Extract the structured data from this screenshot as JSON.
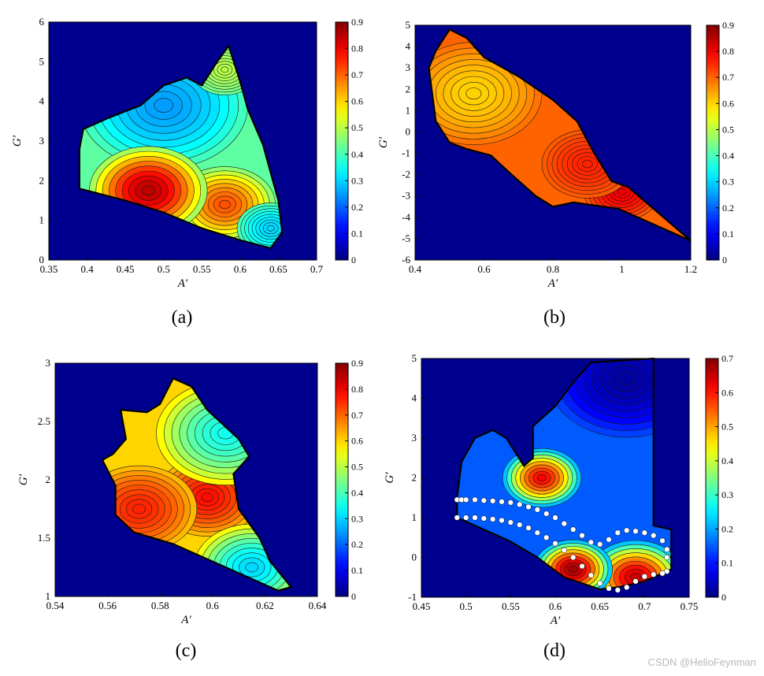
{
  "watermark": "CSDN @HelloFeynman",
  "colors": {
    "background": "#00008f",
    "axis": "#000000"
  },
  "chart_data": [
    {
      "type": "heatmap",
      "panel_label": "(a)",
      "xlabel": "A′",
      "ylabel": "G′",
      "xlim": [
        0.35,
        0.7
      ],
      "ylim": [
        0,
        6
      ],
      "x_ticks": [
        0.35,
        0.4,
        0.45,
        0.5,
        0.55,
        0.6,
        0.65,
        0.7
      ],
      "x_tick_labels": [
        "0.35",
        "0.4",
        "0.45",
        "0.5",
        "0.55",
        "0.6",
        "0.65",
        "0.7"
      ],
      "y_ticks": [
        0,
        1,
        2,
        3,
        4,
        5,
        6
      ],
      "y_tick_labels": [
        "0",
        "1",
        "2",
        "3",
        "4",
        "5",
        "6"
      ],
      "colorbar": {
        "min": 0,
        "max": 0.9,
        "ticks": [
          0,
          0.1,
          0.2,
          0.3,
          0.4,
          0.5,
          0.6,
          0.7,
          0.8,
          0.9
        ],
        "tick_labels": [
          "0",
          "0.1",
          "0.2",
          "0.3",
          "0.4",
          "0.5",
          "0.6",
          "0.7",
          "0.8",
          "0.9"
        ]
      },
      "region": [
        [
          0.39,
          1.8
        ],
        [
          0.39,
          2.8
        ],
        [
          0.395,
          3.3
        ],
        [
          0.43,
          3.6
        ],
        [
          0.47,
          3.9
        ],
        [
          0.5,
          4.4
        ],
        [
          0.53,
          4.6
        ],
        [
          0.55,
          4.4
        ],
        [
          0.57,
          5.0
        ],
        [
          0.585,
          5.4
        ],
        [
          0.6,
          4.5
        ],
        [
          0.61,
          3.8
        ],
        [
          0.63,
          2.9
        ],
        [
          0.64,
          2.2
        ],
        [
          0.65,
          1.5
        ],
        [
          0.655,
          0.7
        ],
        [
          0.64,
          0.3
        ],
        [
          0.6,
          0.5
        ],
        [
          0.55,
          0.8
        ],
        [
          0.5,
          1.2
        ],
        [
          0.45,
          1.5
        ]
      ],
      "peaks": [
        {
          "x": 0.5,
          "y": 3.9,
          "value": 0.25,
          "r": 0.05
        },
        {
          "x": 0.58,
          "y": 1.4,
          "value": 0.72,
          "r": 0.03
        },
        {
          "x": 0.48,
          "y": 1.75,
          "value": 0.85,
          "r": 0.035
        },
        {
          "x": 0.58,
          "y": 4.8,
          "value": 0.5,
          "r": 0.02
        },
        {
          "x": 0.64,
          "y": 0.8,
          "value": 0.3,
          "r": 0.02
        }
      ],
      "base_value": 0.42
    },
    {
      "type": "heatmap",
      "panel_label": "(b)",
      "xlabel": "A′",
      "ylabel": "G′",
      "xlim": [
        0.4,
        1.2
      ],
      "ylim": [
        -6,
        5
      ],
      "x_ticks": [
        0.4,
        0.6,
        0.8,
        1,
        1.2
      ],
      "x_tick_labels": [
        "0.4",
        "0.6",
        "0.8",
        "1",
        "1.2"
      ],
      "y_ticks": [
        -6,
        -5,
        -4,
        -3,
        -2,
        -1,
        0,
        1,
        2,
        3,
        4,
        5
      ],
      "y_tick_labels": [
        "-6",
        "-5",
        "-4",
        "-3",
        "-2",
        "-1",
        "0",
        "1",
        "2",
        "3",
        "4",
        "5"
      ],
      "colorbar": {
        "min": 0,
        "max": 0.9,
        "ticks": [
          0,
          0.1,
          0.2,
          0.3,
          0.4,
          0.5,
          0.6,
          0.7,
          0.8,
          0.9
        ],
        "tick_labels": [
          "0",
          "0.1",
          "0.2",
          "0.3",
          "0.4",
          "0.5",
          "0.6",
          "0.7",
          "0.8",
          "0.9"
        ]
      },
      "region": [
        [
          0.44,
          3.0
        ],
        [
          0.46,
          3.8
        ],
        [
          0.5,
          4.8
        ],
        [
          0.55,
          4.4
        ],
        [
          0.6,
          3.5
        ],
        [
          0.7,
          2.6
        ],
        [
          0.8,
          1.5
        ],
        [
          0.87,
          0.5
        ],
        [
          0.92,
          -1.0
        ],
        [
          0.97,
          -2.3
        ],
        [
          1.02,
          -2.6
        ],
        [
          1.2,
          -5.1
        ],
        [
          0.99,
          -3.6
        ],
        [
          0.86,
          -3.3
        ],
        [
          0.8,
          -3.5
        ],
        [
          0.75,
          -3.0
        ],
        [
          0.68,
          -2.0
        ],
        [
          0.62,
          -1.1
        ],
        [
          0.55,
          -0.8
        ],
        [
          0.5,
          -0.5
        ],
        [
          0.46,
          0.5
        ]
      ],
      "peaks": [
        {
          "x": 0.57,
          "y": 1.8,
          "value": 0.6,
          "r": 0.09
        },
        {
          "x": 1.0,
          "y": -2.8,
          "value": 0.8,
          "r": 0.05
        },
        {
          "x": 0.9,
          "y": -1.5,
          "value": 0.76,
          "r": 0.06
        }
      ],
      "base_value": 0.7
    },
    {
      "type": "heatmap",
      "panel_label": "(c)",
      "xlabel": "A′",
      "ylabel": "G′",
      "xlim": [
        0.54,
        0.64
      ],
      "ylim": [
        1,
        3
      ],
      "x_ticks": [
        0.54,
        0.56,
        0.58,
        0.6,
        0.62,
        0.64
      ],
      "x_tick_labels": [
        "0.54",
        "0.56",
        "0.58",
        "0.6",
        "0.62",
        "0.64"
      ],
      "y_ticks": [
        1,
        1.5,
        2,
        2.5,
        3
      ],
      "y_tick_labels": [
        "1",
        "1.5",
        "2",
        "2.5",
        "3"
      ],
      "colorbar": {
        "min": 0,
        "max": 0.9,
        "ticks": [
          0,
          0.1,
          0.2,
          0.3,
          0.4,
          0.5,
          0.6,
          0.7,
          0.8,
          0.9
        ],
        "tick_labels": [
          "0",
          "0.1",
          "0.2",
          "0.3",
          "0.4",
          "0.5",
          "0.6",
          "0.7",
          "0.8",
          "0.9"
        ]
      },
      "region": [
        [
          0.558,
          2.17
        ],
        [
          0.562,
          2.22
        ],
        [
          0.567,
          2.35
        ],
        [
          0.565,
          2.6
        ],
        [
          0.575,
          2.58
        ],
        [
          0.58,
          2.65
        ],
        [
          0.585,
          2.87
        ],
        [
          0.592,
          2.8
        ],
        [
          0.598,
          2.6
        ],
        [
          0.61,
          2.35
        ],
        [
          0.614,
          2.2
        ],
        [
          0.608,
          2.05
        ],
        [
          0.61,
          1.75
        ],
        [
          0.618,
          1.5
        ],
        [
          0.622,
          1.3
        ],
        [
          0.63,
          1.08
        ],
        [
          0.625,
          1.05
        ],
        [
          0.6,
          1.3
        ],
        [
          0.585,
          1.45
        ],
        [
          0.57,
          1.55
        ],
        [
          0.563,
          1.7
        ],
        [
          0.563,
          1.95
        ]
      ],
      "peaks": [
        {
          "x": 0.598,
          "y": 1.85,
          "value": 0.78,
          "r": 0.009
        },
        {
          "x": 0.572,
          "y": 1.75,
          "value": 0.76,
          "r": 0.01
        },
        {
          "x": 0.605,
          "y": 2.4,
          "value": 0.35,
          "r": 0.012
        },
        {
          "x": 0.615,
          "y": 1.25,
          "value": 0.3,
          "r": 0.01
        }
      ],
      "base_value": 0.6
    },
    {
      "type": "heatmap",
      "panel_label": "(d)",
      "xlabel": "A′",
      "ylabel": "G′",
      "xlim": [
        0.45,
        0.75
      ],
      "ylim": [
        -1,
        5
      ],
      "x_ticks": [
        0.45,
        0.5,
        0.55,
        0.6,
        0.65,
        0.7,
        0.75
      ],
      "x_tick_labels": [
        "0.45",
        "0.5",
        "0.55",
        "0.6",
        "0.65",
        "0.7",
        "0.75"
      ],
      "y_ticks": [
        -1,
        0,
        1,
        2,
        3,
        4,
        5
      ],
      "y_tick_labels": [
        "-1",
        "0",
        "1",
        "2",
        "3",
        "4",
        "5"
      ],
      "colorbar": {
        "min": 0,
        "max": 0.7,
        "ticks": [
          0,
          0.1,
          0.2,
          0.3,
          0.4,
          0.5,
          0.6,
          0.7
        ],
        "tick_labels": [
          "0",
          "0.1",
          "0.2",
          "0.3",
          "0.4",
          "0.5",
          "0.6",
          "0.7"
        ]
      },
      "region": [
        [
          0.49,
          1.5
        ],
        [
          0.495,
          2.4
        ],
        [
          0.51,
          3.0
        ],
        [
          0.53,
          3.2
        ],
        [
          0.545,
          3.0
        ],
        [
          0.565,
          2.3
        ],
        [
          0.575,
          2.5
        ],
        [
          0.575,
          3.3
        ],
        [
          0.6,
          3.8
        ],
        [
          0.62,
          4.4
        ],
        [
          0.64,
          4.9
        ],
        [
          0.71,
          5.0
        ],
        [
          0.71,
          0.8
        ],
        [
          0.73,
          0.7
        ],
        [
          0.73,
          -0.3
        ],
        [
          0.7,
          -0.6
        ],
        [
          0.67,
          -0.75
        ],
        [
          0.65,
          -0.8
        ],
        [
          0.61,
          -0.5
        ],
        [
          0.58,
          0.0
        ],
        [
          0.55,
          0.4
        ],
        [
          0.49,
          1.0
        ]
      ],
      "peaks": [
        {
          "x": 0.585,
          "y": 2.0,
          "value": 0.62,
          "r": 0.02
        },
        {
          "x": 0.69,
          "y": -0.5,
          "value": 0.65,
          "r": 0.025
        },
        {
          "x": 0.62,
          "y": -0.3,
          "value": 0.68,
          "r": 0.02
        },
        {
          "x": 0.68,
          "y": 4.5,
          "value": 0.02,
          "r": 0.04
        }
      ],
      "base_value": 0.15,
      "markers": [
        [
          0.49,
          1.45
        ],
        [
          0.495,
          1.45
        ],
        [
          0.5,
          1.45
        ],
        [
          0.51,
          1.45
        ],
        [
          0.52,
          1.43
        ],
        [
          0.53,
          1.42
        ],
        [
          0.54,
          1.4
        ],
        [
          0.55,
          1.38
        ],
        [
          0.56,
          1.33
        ],
        [
          0.57,
          1.27
        ],
        [
          0.58,
          1.2
        ],
        [
          0.59,
          1.1
        ],
        [
          0.6,
          1.0
        ],
        [
          0.61,
          0.85
        ],
        [
          0.62,
          0.7
        ],
        [
          0.63,
          0.55
        ],
        [
          0.64,
          0.38
        ],
        [
          0.65,
          0.33
        ],
        [
          0.66,
          0.45
        ],
        [
          0.67,
          0.62
        ],
        [
          0.68,
          0.68
        ],
        [
          0.69,
          0.66
        ],
        [
          0.7,
          0.62
        ],
        [
          0.71,
          0.55
        ],
        [
          0.72,
          0.42
        ],
        [
          0.725,
          0.2
        ],
        [
          0.725,
          0.0
        ],
        [
          0.725,
          -0.35
        ],
        [
          0.49,
          1.0
        ],
        [
          0.5,
          1.0
        ],
        [
          0.51,
          1.0
        ],
        [
          0.52,
          0.98
        ],
        [
          0.53,
          0.96
        ],
        [
          0.54,
          0.93
        ],
        [
          0.55,
          0.88
        ],
        [
          0.56,
          0.82
        ],
        [
          0.57,
          0.74
        ],
        [
          0.58,
          0.62
        ],
        [
          0.59,
          0.5
        ],
        [
          0.6,
          0.35
        ],
        [
          0.61,
          0.18
        ],
        [
          0.62,
          0.0
        ],
        [
          0.63,
          -0.22
        ],
        [
          0.64,
          -0.45
        ],
        [
          0.65,
          -0.65
        ],
        [
          0.66,
          -0.78
        ],
        [
          0.67,
          -0.82
        ],
        [
          0.68,
          -0.75
        ],
        [
          0.69,
          -0.6
        ],
        [
          0.7,
          -0.48
        ],
        [
          0.71,
          -0.43
        ],
        [
          0.72,
          -0.4
        ]
      ]
    }
  ]
}
